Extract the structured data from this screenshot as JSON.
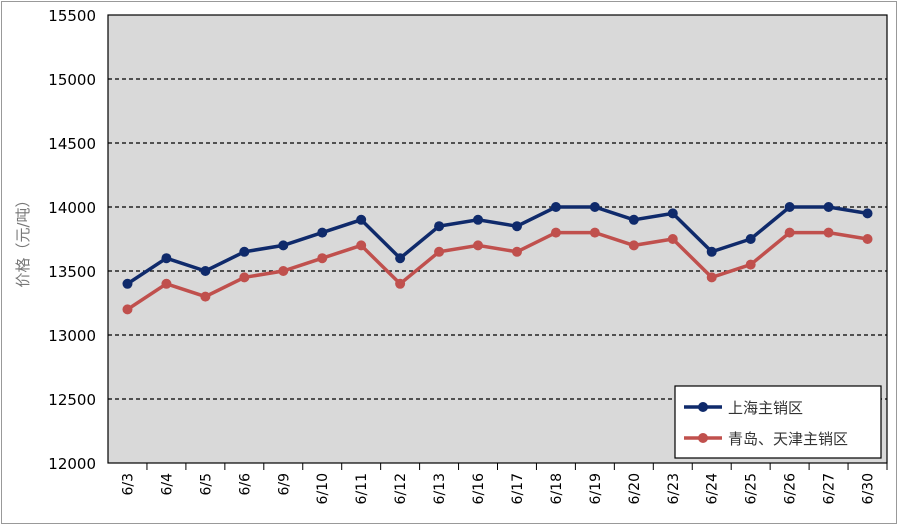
{
  "chart_data": {
    "type": "line",
    "title": "",
    "xlabel": "",
    "ylabel": "价格（元/吨）",
    "ylim": [
      12000,
      15500
    ],
    "yticks": [
      12000,
      12500,
      13000,
      13500,
      14000,
      14500,
      15000,
      15500
    ],
    "grid": "horizontal dashed",
    "plot_background": "#d9d9d9",
    "legend_position": "bottom-right",
    "categories": [
      "6/3",
      "6/4",
      "6/5",
      "6/6",
      "6/9",
      "6/10",
      "6/11",
      "6/12",
      "6/13",
      "6/16",
      "6/17",
      "6/18",
      "6/19",
      "6/20",
      "6/23",
      "6/24",
      "6/25",
      "6/26",
      "6/27",
      "6/30"
    ],
    "series": [
      {
        "name": "上海主销区",
        "color": "#0f2a6b",
        "values": [
          13400,
          13600,
          13500,
          13650,
          13700,
          13800,
          13900,
          13600,
          13850,
          13900,
          13850,
          14000,
          14000,
          13900,
          13950,
          13650,
          13750,
          14000,
          14000,
          13950
        ]
      },
      {
        "name": "青岛、天津主销区",
        "color": "#c0504d",
        "values": [
          13200,
          13400,
          13300,
          13450,
          13500,
          13600,
          13700,
          13400,
          13650,
          13700,
          13650,
          13800,
          13800,
          13700,
          13750,
          13450,
          13550,
          13800,
          13800,
          13750
        ]
      }
    ]
  }
}
